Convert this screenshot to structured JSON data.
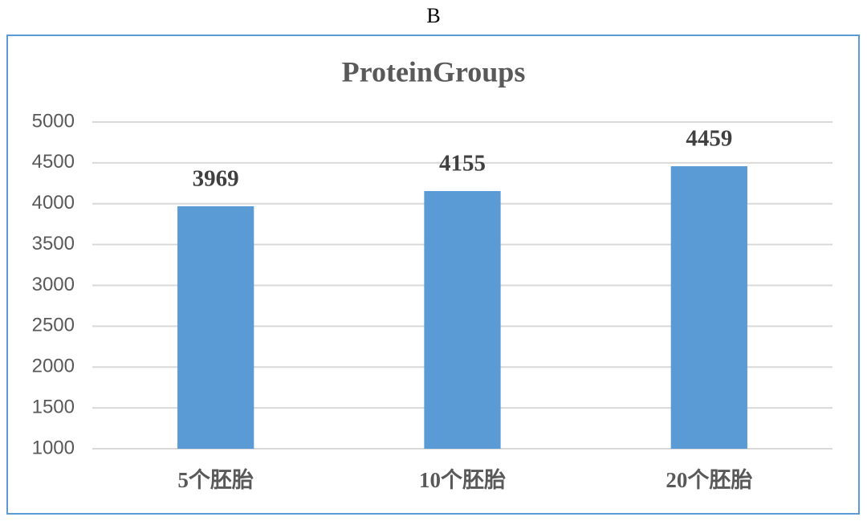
{
  "panel_label": "B",
  "chart_data": {
    "type": "bar",
    "title": "ProteinGroups",
    "categories": [
      "5个胚胎",
      "10个胚胎",
      "20个胚胎"
    ],
    "values": [
      3969,
      4155,
      4459
    ],
    "color": "#5b9bd5",
    "ylim": [
      1000,
      5000
    ],
    "yticks": [
      1000,
      1500,
      2000,
      2500,
      3000,
      3500,
      4000,
      4500,
      5000
    ],
    "grid": true,
    "data_labels": true
  }
}
